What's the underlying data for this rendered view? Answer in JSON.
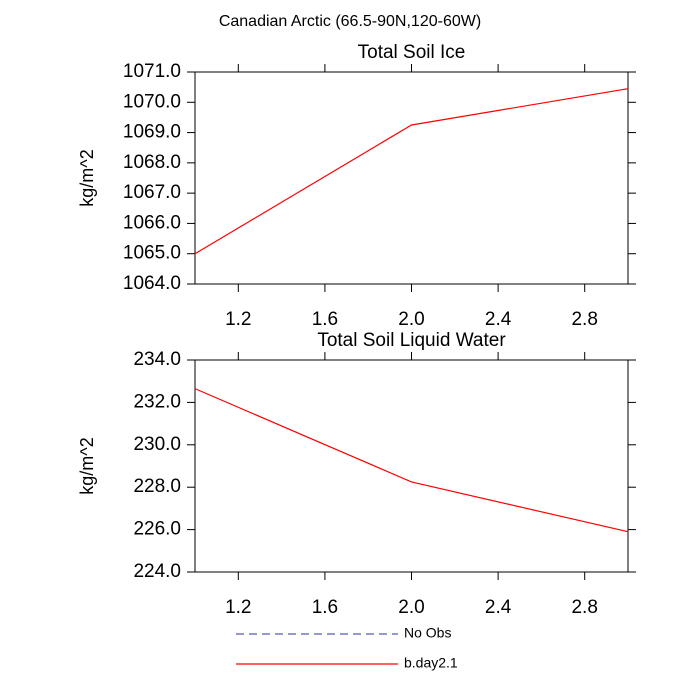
{
  "title": "Canadian Arctic (66.5-90N,120-60W)",
  "chart_data": [
    {
      "type": "line",
      "title": "Total Soil Ice",
      "ylabel": "kg/m^2",
      "x": [
        1,
        2,
        3
      ],
      "xlim": [
        1,
        3
      ],
      "xticks": [
        1.2,
        1.6,
        {
          "value": 2,
          "label": "2.0"
        },
        2.4,
        2.8
      ],
      "ylim": [
        1064,
        1071
      ],
      "yticks": [
        {
          "value": 1064,
          "label": "1064.0"
        },
        {
          "value": 1065,
          "label": "1065.0"
        },
        {
          "value": 1066,
          "label": "1066.0"
        },
        {
          "value": 1067,
          "label": "1067.0"
        },
        {
          "value": 1068,
          "label": "1068.0"
        },
        {
          "value": 1069,
          "label": "1069.0"
        },
        {
          "value": 1070,
          "label": "1070.0"
        },
        {
          "value": 1071,
          "label": "1071.0"
        }
      ],
      "series": [
        {
          "name": "No Obs",
          "color": "#5a5ab4",
          "dashed": true,
          "values": [
            null,
            null,
            null
          ]
        },
        {
          "name": "b.day2.1",
          "color": "#ff0000",
          "values": [
            1065.0,
            1069.25,
            1070.45
          ]
        }
      ]
    },
    {
      "type": "line",
      "title": "Total Soil Liquid Water",
      "ylabel": "kg/m^2",
      "x": [
        1,
        2,
        3
      ],
      "xlim": [
        1,
        3
      ],
      "xticks": [
        1.2,
        1.6,
        {
          "value": 2,
          "label": "2.0"
        },
        2.4,
        2.8
      ],
      "ylim": [
        224,
        234
      ],
      "yticks": [
        {
          "value": 224,
          "label": "224.0"
        },
        {
          "value": 226,
          "label": "226.0"
        },
        {
          "value": 228,
          "label": "228.0"
        },
        {
          "value": 230,
          "label": "230.0"
        },
        {
          "value": 232,
          "label": "232.0"
        },
        {
          "value": 234,
          "label": "234.0"
        }
      ],
      "series": [
        {
          "color": "#5a5ab4",
          "dashed": true,
          "values": [
            null,
            null,
            null
          ]
        },
        {
          "color": "#ff0000",
          "values": [
            232.65,
            228.25,
            225.9
          ]
        }
      ]
    }
  ]
}
